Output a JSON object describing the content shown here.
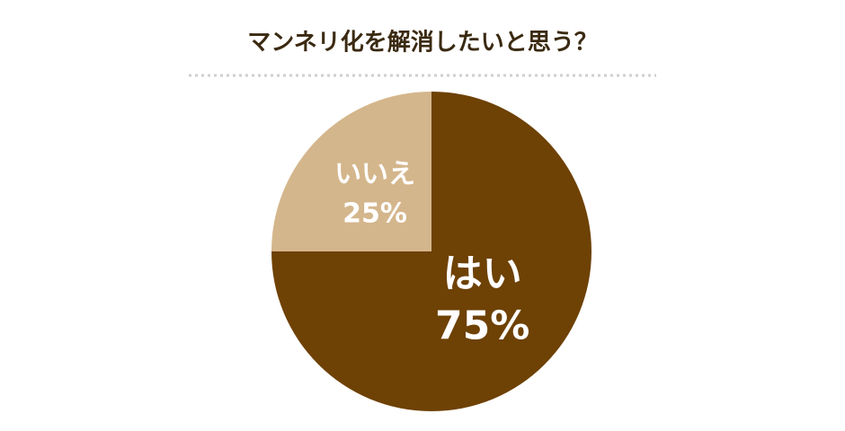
{
  "chart_data": {
    "type": "pie",
    "title": "マンネリ化を解消したいと思う？",
    "categories": [
      "はい",
      "いいえ"
    ],
    "values": [
      75,
      25
    ],
    "value_labels": [
      "75%",
      "25%"
    ],
    "colors": [
      "#6e4104",
      "#d4b68c"
    ]
  }
}
